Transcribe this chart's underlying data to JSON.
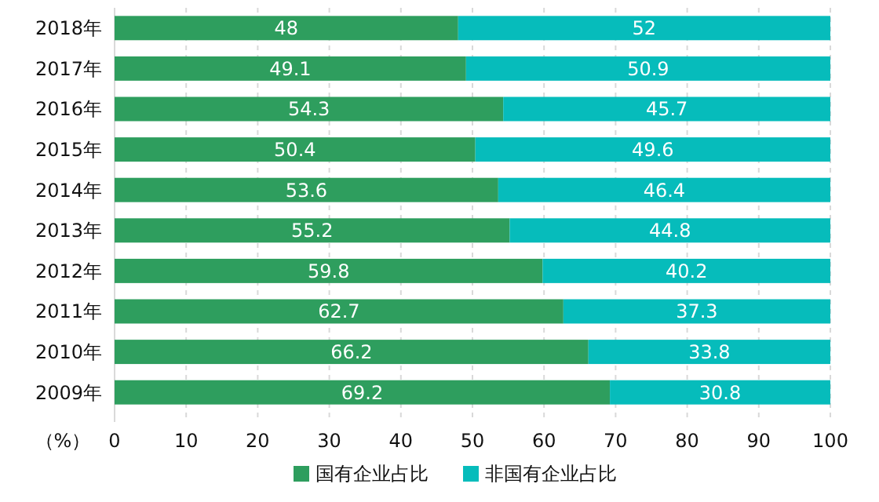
{
  "chart_data": {
    "type": "bar",
    "orientation": "horizontal",
    "stacked": true,
    "xlabel": "（%）",
    "categories": [
      "2018年",
      "2017年",
      "2016年",
      "2015年",
      "2014年",
      "2013年",
      "2012年",
      "2011年",
      "2010年",
      "2009年"
    ],
    "series": [
      {
        "name": "国有企业占比",
        "color": "#2e9e5e",
        "values": [
          48,
          49.1,
          54.3,
          50.4,
          53.6,
          55.2,
          59.8,
          62.7,
          66.2,
          69.2
        ]
      },
      {
        "name": "非国有企业占比",
        "color": "#06bcbb",
        "values": [
          52,
          50.9,
          45.7,
          49.6,
          46.4,
          44.8,
          40.2,
          37.3,
          33.8,
          30.8
        ]
      }
    ],
    "xlim": [
      0,
      100
    ],
    "xticks": [
      0,
      10,
      20,
      30,
      40,
      50,
      60,
      70,
      80,
      90,
      100
    ],
    "grid": "x",
    "legend": "bottom",
    "data_labels": true
  }
}
